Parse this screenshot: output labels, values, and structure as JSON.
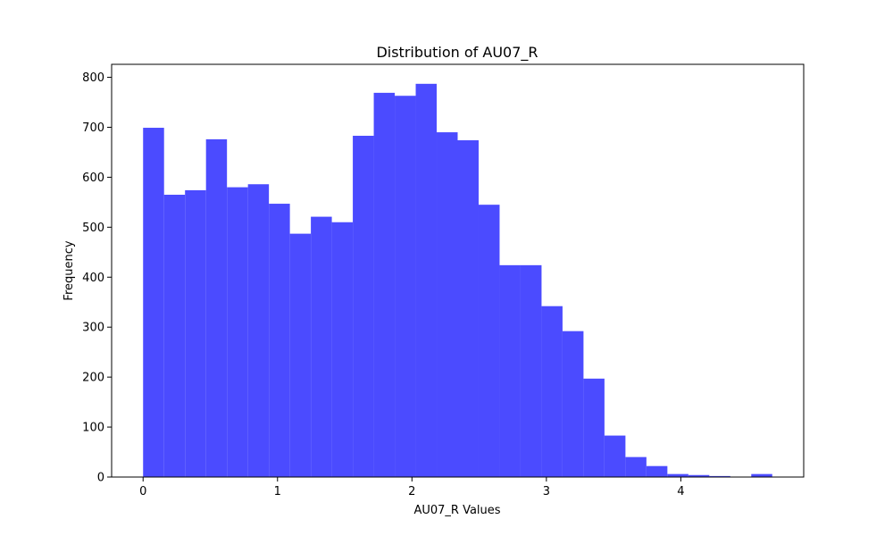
{
  "chart_data": {
    "type": "bar",
    "title": "Distribution of AU07_R",
    "xlabel": "AU07_R Values",
    "ylabel": "Frequency",
    "bar_color": "#4b4bff",
    "bin_edges": [
      0.0,
      0.156,
      0.312,
      0.468,
      0.624,
      0.78,
      0.936,
      1.092,
      1.248,
      1.404,
      1.56,
      1.716,
      1.872,
      2.028,
      2.184,
      2.34,
      2.496,
      2.652,
      2.808,
      2.964,
      3.12,
      3.276,
      3.432,
      3.588,
      3.744,
      3.9,
      4.056,
      4.212,
      4.368,
      4.524,
      4.68
    ],
    "values": [
      699,
      565,
      574,
      676,
      580,
      586,
      547,
      487,
      521,
      510,
      683,
      769,
      763,
      787,
      690,
      674,
      545,
      424,
      424,
      342,
      292,
      197,
      83,
      40,
      22,
      6,
      4,
      2,
      0,
      6
    ],
    "xlim": [
      -0.234,
      4.914
    ],
    "ylim": [
      0,
      826
    ],
    "xticks": [
      0,
      1,
      2,
      3,
      4
    ],
    "xtick_labels": [
      "0",
      "1",
      "2",
      "3",
      "4"
    ],
    "yticks": [
      0,
      100,
      200,
      300,
      400,
      500,
      600,
      700,
      800
    ],
    "ytick_labels": [
      "0",
      "100",
      "200",
      "300",
      "400",
      "500",
      "600",
      "700",
      "800"
    ],
    "grid": false,
    "legend": "none"
  }
}
